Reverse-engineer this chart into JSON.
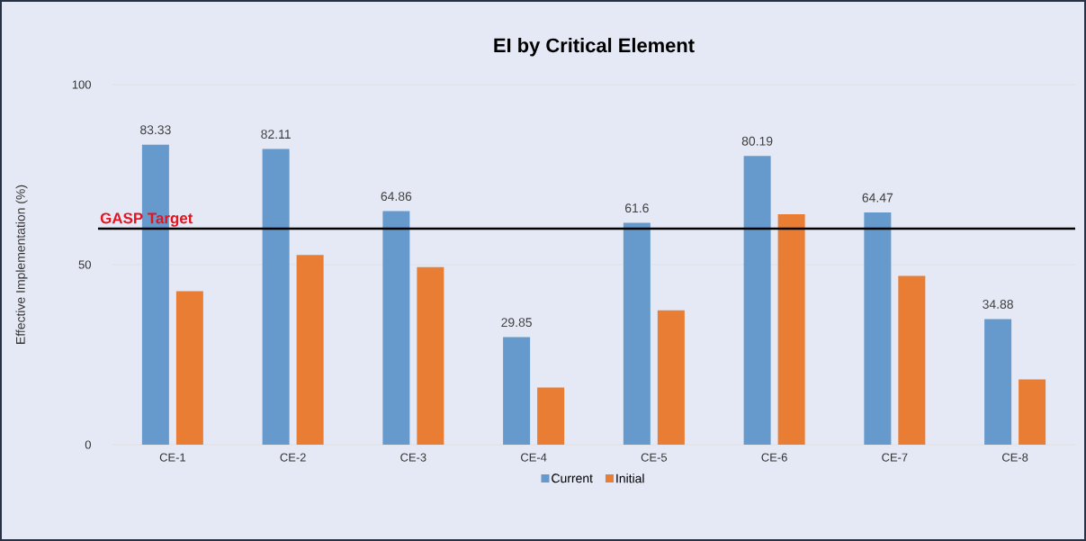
{
  "chart_data": {
    "type": "bar",
    "title": "EI by Critical Element",
    "ylabel": "Effective Implementation (%)",
    "categories": [
      "CE-1",
      "CE-2",
      "CE-3",
      "CE-4",
      "CE-5",
      "CE-6",
      "CE-7",
      "CE-8"
    ],
    "series": [
      {
        "name": "Current",
        "color": "#6699cc",
        "values": [
          83.33,
          82.11,
          64.86,
          29.85,
          61.6,
          80.19,
          64.47,
          34.88
        ],
        "value_labels": [
          "83.33",
          "82.11",
          "64.86",
          "29.85",
          "61.6",
          "80.19",
          "64.47",
          "34.88"
        ]
      },
      {
        "name": "Initial",
        "color": "#e87d33",
        "values": [
          42.6,
          52.7,
          49.3,
          15.9,
          37.3,
          64,
          46.9,
          18.1
        ]
      }
    ],
    "ylim": [
      0,
      100
    ],
    "yticks": [
      0,
      50,
      100
    ],
    "grid": "y",
    "legend": "bottom",
    "ref_lines": [
      {
        "axis": "y",
        "value": 60,
        "label": "GASP Target",
        "color": "#000000"
      }
    ]
  }
}
